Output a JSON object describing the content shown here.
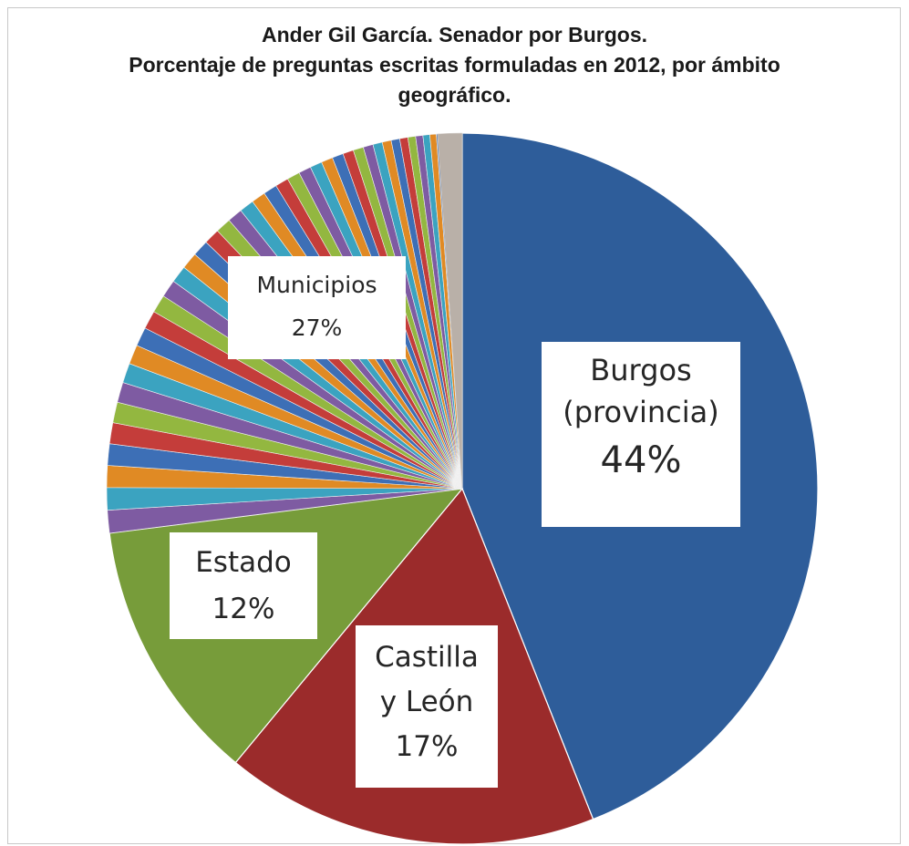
{
  "chart_data": {
    "type": "pie",
    "title_lines": [
      "Ander Gil García. Senador por Burgos.",
      "Porcentaje de preguntas escritas formuladas en 2012, por ámbito",
      "geográfico."
    ],
    "start_angle_deg": 0,
    "direction": "clockwise",
    "slices": [
      {
        "name": "Burgos (provincia)",
        "value": 44,
        "label_lines": [
          "Burgos",
          "(provincia)",
          "44%"
        ],
        "color": "#2e5d9a"
      },
      {
        "name": "Castilla y León",
        "value": 17,
        "label_lines": [
          "Castilla",
          "y León",
          "17%"
        ],
        "color": "#9b2b2b"
      },
      {
        "name": "Estado",
        "value": 12,
        "label_lines": [
          "Estado",
          "12%"
        ],
        "color": "#779c3a"
      },
      {
        "name": "Municipios",
        "value": 27,
        "label_lines": [
          "Municipios",
          "27%"
        ],
        "color": "#7f5b9e"
      }
    ],
    "municipios_segments": 44,
    "municipios_palette": [
      "#7e5ba2",
      "#3ba3c0",
      "#e08a24",
      "#3d6fb6",
      "#c43d3a",
      "#93b740",
      "#7e5ba2",
      "#3ba3c0",
      "#e08a24",
      "#3d6fb6",
      "#c43d3a",
      "#93b740"
    ],
    "legend": "none"
  }
}
